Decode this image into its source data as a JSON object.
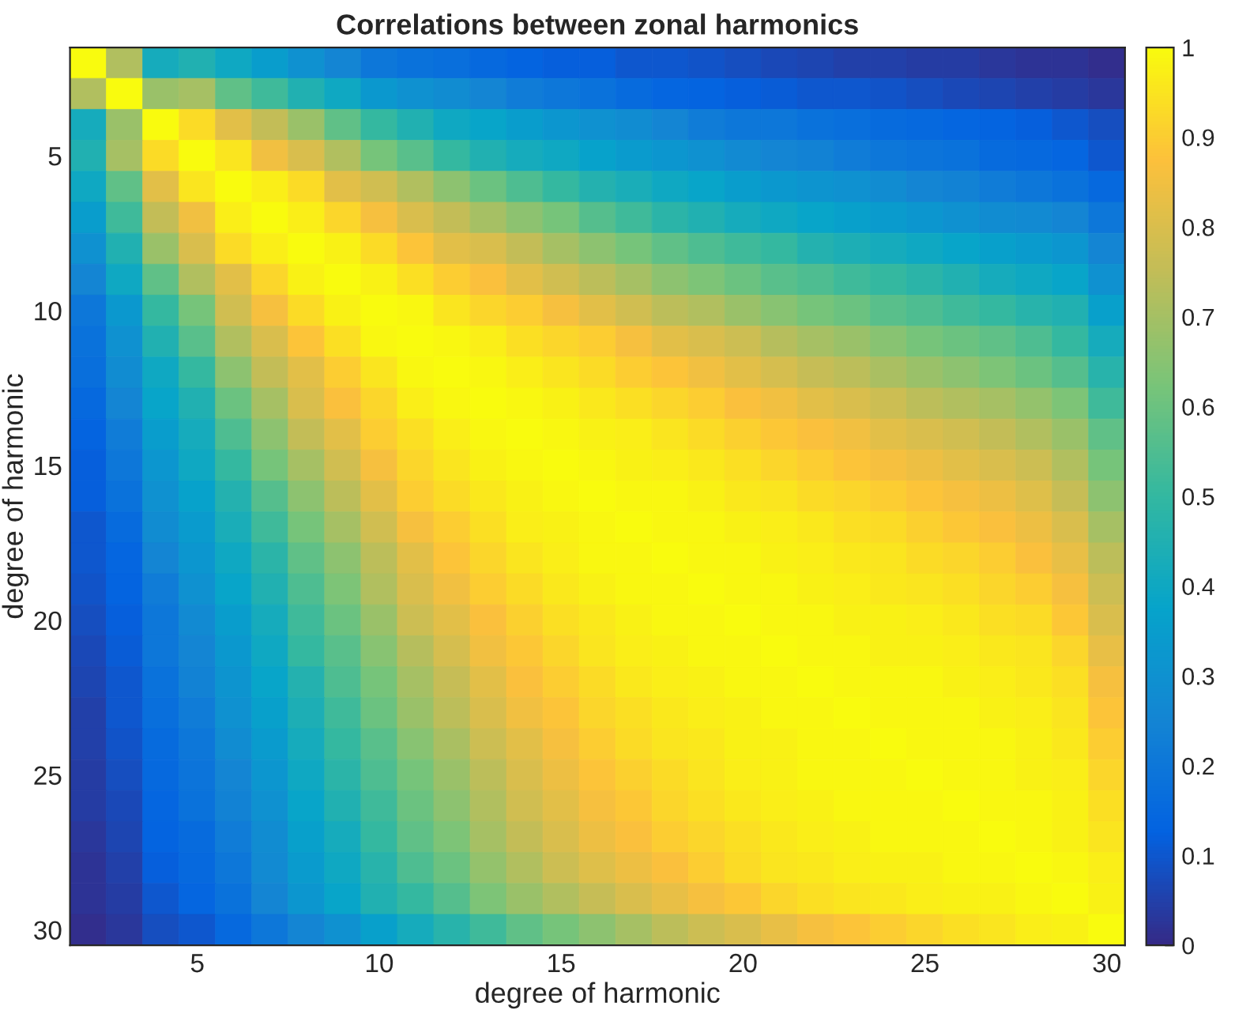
{
  "chart_data": {
    "type": "heatmap",
    "title": "Correlations between zonal harmonics",
    "xlabel": "degree of harmonic",
    "ylabel": "degree of harmonic",
    "categories": [
      null,
      null,
      null,
      "5",
      null,
      null,
      null,
      null,
      "10",
      null,
      null,
      null,
      null,
      "15",
      null,
      null,
      null,
      null,
      "20",
      null,
      null,
      null,
      null,
      "25",
      null,
      null,
      null,
      null,
      "30"
    ],
    "y_categories": [
      null,
      null,
      null,
      "5",
      null,
      null,
      null,
      null,
      "10",
      null,
      null,
      null,
      null,
      "15",
      null,
      null,
      null,
      null,
      "20",
      null,
      null,
      null,
      null,
      "25",
      null,
      null,
      null,
      null,
      "30"
    ],
    "clim": [
      0,
      1
    ],
    "cticks": [
      0,
      0.1,
      0.2,
      0.3,
      0.4,
      0.5,
      0.6,
      0.7,
      0.8,
      0.9,
      1
    ],
    "cells": [
      [
        1,
        0.72,
        0.42,
        0.45,
        0.4,
        0.35,
        0.3,
        0.25,
        0.2,
        0.18,
        0.17,
        0.15,
        0.13,
        0.12,
        0.12,
        0.1,
        0.1,
        0.09,
        0.08,
        0.07,
        0.06,
        0.05,
        0.05,
        0.04,
        0.04,
        0.03,
        0.02,
        0.02,
        0.01
      ],
      [
        0.72,
        1,
        0.68,
        0.7,
        0.58,
        0.52,
        0.45,
        0.4,
        0.33,
        0.3,
        0.28,
        0.25,
        0.22,
        0.2,
        0.18,
        0.16,
        0.14,
        0.13,
        0.12,
        0.11,
        0.1,
        0.1,
        0.09,
        0.08,
        0.07,
        0.06,
        0.05,
        0.04,
        0.03
      ],
      [
        0.42,
        0.68,
        1,
        0.93,
        0.82,
        0.75,
        0.68,
        0.58,
        0.5,
        0.45,
        0.4,
        0.38,
        0.35,
        0.32,
        0.3,
        0.28,
        0.25,
        0.22,
        0.2,
        0.2,
        0.18,
        0.17,
        0.16,
        0.15,
        0.14,
        0.13,
        0.12,
        0.1,
        0.08
      ],
      [
        0.45,
        0.7,
        0.93,
        1,
        0.95,
        0.85,
        0.8,
        0.72,
        0.62,
        0.57,
        0.5,
        0.45,
        0.42,
        0.4,
        0.37,
        0.34,
        0.32,
        0.3,
        0.27,
        0.25,
        0.24,
        0.22,
        0.2,
        0.19,
        0.18,
        0.16,
        0.15,
        0.14,
        0.1
      ],
      [
        0.4,
        0.58,
        0.82,
        0.95,
        1,
        0.97,
        0.93,
        0.82,
        0.78,
        0.72,
        0.66,
        0.6,
        0.55,
        0.5,
        0.46,
        0.43,
        0.4,
        0.38,
        0.35,
        0.33,
        0.31,
        0.3,
        0.28,
        0.25,
        0.24,
        0.22,
        0.2,
        0.18,
        0.15
      ],
      [
        0.35,
        0.52,
        0.75,
        0.85,
        0.97,
        1,
        0.97,
        0.92,
        0.86,
        0.8,
        0.75,
        0.7,
        0.66,
        0.62,
        0.56,
        0.52,
        0.48,
        0.45,
        0.42,
        0.4,
        0.38,
        0.36,
        0.34,
        0.32,
        0.3,
        0.28,
        0.27,
        0.25,
        0.2
      ],
      [
        0.3,
        0.45,
        0.68,
        0.8,
        0.93,
        0.97,
        1,
        0.98,
        0.93,
        0.88,
        0.82,
        0.8,
        0.75,
        0.7,
        0.66,
        0.62,
        0.58,
        0.55,
        0.52,
        0.5,
        0.46,
        0.44,
        0.42,
        0.4,
        0.38,
        0.36,
        0.34,
        0.32,
        0.25
      ],
      [
        0.25,
        0.4,
        0.58,
        0.72,
        0.82,
        0.92,
        0.98,
        1,
        0.98,
        0.94,
        0.9,
        0.87,
        0.82,
        0.78,
        0.74,
        0.7,
        0.66,
        0.63,
        0.6,
        0.57,
        0.55,
        0.52,
        0.5,
        0.48,
        0.45,
        0.42,
        0.4,
        0.38,
        0.3
      ],
      [
        0.2,
        0.33,
        0.5,
        0.62,
        0.78,
        0.86,
        0.93,
        0.98,
        1,
        0.99,
        0.95,
        0.92,
        0.9,
        0.86,
        0.82,
        0.78,
        0.74,
        0.72,
        0.68,
        0.65,
        0.62,
        0.6,
        0.57,
        0.55,
        0.52,
        0.5,
        0.47,
        0.45,
        0.36
      ],
      [
        0.18,
        0.3,
        0.45,
        0.57,
        0.72,
        0.8,
        0.88,
        0.94,
        0.99,
        1,
        0.99,
        0.97,
        0.94,
        0.92,
        0.9,
        0.86,
        0.82,
        0.8,
        0.77,
        0.73,
        0.7,
        0.68,
        0.65,
        0.62,
        0.6,
        0.58,
        0.55,
        0.5,
        0.42
      ],
      [
        0.17,
        0.28,
        0.4,
        0.5,
        0.66,
        0.75,
        0.82,
        0.9,
        0.95,
        0.99,
        1,
        0.99,
        0.97,
        0.95,
        0.93,
        0.9,
        0.88,
        0.85,
        0.82,
        0.79,
        0.76,
        0.74,
        0.71,
        0.68,
        0.66,
        0.63,
        0.6,
        0.56,
        0.47
      ],
      [
        0.15,
        0.25,
        0.38,
        0.45,
        0.6,
        0.7,
        0.8,
        0.87,
        0.92,
        0.97,
        0.99,
        1,
        0.99,
        0.98,
        0.96,
        0.94,
        0.92,
        0.9,
        0.87,
        0.85,
        0.82,
        0.8,
        0.77,
        0.74,
        0.72,
        0.7,
        0.67,
        0.63,
        0.52
      ],
      [
        0.13,
        0.22,
        0.35,
        0.42,
        0.55,
        0.66,
        0.75,
        0.82,
        0.9,
        0.94,
        0.97,
        0.99,
        1,
        0.99,
        0.98,
        0.97,
        0.95,
        0.93,
        0.91,
        0.89,
        0.87,
        0.85,
        0.82,
        0.8,
        0.78,
        0.75,
        0.72,
        0.68,
        0.58
      ],
      [
        0.12,
        0.2,
        0.32,
        0.4,
        0.5,
        0.62,
        0.7,
        0.78,
        0.86,
        0.92,
        0.95,
        0.98,
        0.99,
        1,
        0.99,
        0.98,
        0.97,
        0.96,
        0.94,
        0.92,
        0.9,
        0.88,
        0.86,
        0.84,
        0.82,
        0.8,
        0.77,
        0.72,
        0.62
      ],
      [
        0.12,
        0.18,
        0.3,
        0.37,
        0.46,
        0.56,
        0.66,
        0.74,
        0.82,
        0.9,
        0.93,
        0.96,
        0.98,
        0.99,
        1,
        0.99,
        0.99,
        0.98,
        0.96,
        0.95,
        0.93,
        0.92,
        0.9,
        0.88,
        0.86,
        0.84,
        0.81,
        0.76,
        0.66
      ],
      [
        0.1,
        0.16,
        0.28,
        0.34,
        0.43,
        0.52,
        0.62,
        0.7,
        0.78,
        0.86,
        0.9,
        0.94,
        0.97,
        0.98,
        0.99,
        1,
        0.99,
        0.99,
        0.98,
        0.97,
        0.96,
        0.94,
        0.93,
        0.91,
        0.89,
        0.87,
        0.84,
        0.8,
        0.7
      ],
      [
        0.1,
        0.14,
        0.25,
        0.32,
        0.4,
        0.48,
        0.58,
        0.66,
        0.74,
        0.82,
        0.88,
        0.92,
        0.95,
        0.97,
        0.99,
        0.99,
        1,
        0.99,
        0.99,
        0.98,
        0.97,
        0.96,
        0.95,
        0.93,
        0.92,
        0.9,
        0.87,
        0.83,
        0.74
      ],
      [
        0.09,
        0.13,
        0.22,
        0.3,
        0.38,
        0.45,
        0.55,
        0.63,
        0.72,
        0.8,
        0.85,
        0.9,
        0.93,
        0.96,
        0.98,
        0.99,
        0.99,
        1,
        0.99,
        0.99,
        0.98,
        0.97,
        0.96,
        0.95,
        0.94,
        0.92,
        0.9,
        0.86,
        0.77
      ],
      [
        0.08,
        0.12,
        0.2,
        0.27,
        0.35,
        0.42,
        0.52,
        0.6,
        0.68,
        0.77,
        0.82,
        0.87,
        0.91,
        0.94,
        0.96,
        0.98,
        0.99,
        0.99,
        1,
        0.99,
        0.99,
        0.98,
        0.98,
        0.97,
        0.96,
        0.94,
        0.93,
        0.89,
        0.8
      ],
      [
        0.07,
        0.11,
        0.2,
        0.25,
        0.33,
        0.4,
        0.5,
        0.57,
        0.65,
        0.73,
        0.79,
        0.85,
        0.89,
        0.92,
        0.95,
        0.97,
        0.98,
        0.99,
        0.99,
        1,
        0.99,
        0.99,
        0.98,
        0.98,
        0.97,
        0.96,
        0.95,
        0.92,
        0.83
      ],
      [
        0.06,
        0.1,
        0.18,
        0.24,
        0.31,
        0.38,
        0.46,
        0.55,
        0.62,
        0.7,
        0.76,
        0.82,
        0.87,
        0.9,
        0.93,
        0.96,
        0.97,
        0.98,
        0.99,
        0.99,
        1,
        0.99,
        0.99,
        0.99,
        0.98,
        0.97,
        0.96,
        0.94,
        0.86
      ],
      [
        0.05,
        0.1,
        0.17,
        0.22,
        0.3,
        0.36,
        0.44,
        0.52,
        0.6,
        0.68,
        0.74,
        0.8,
        0.85,
        0.88,
        0.92,
        0.94,
        0.96,
        0.97,
        0.98,
        0.99,
        0.99,
        1,
        0.99,
        0.99,
        0.99,
        0.98,
        0.97,
        0.95,
        0.88
      ],
      [
        0.05,
        0.09,
        0.16,
        0.2,
        0.28,
        0.34,
        0.42,
        0.5,
        0.57,
        0.65,
        0.71,
        0.77,
        0.82,
        0.86,
        0.9,
        0.93,
        0.95,
        0.96,
        0.98,
        0.98,
        0.99,
        0.99,
        1,
        0.99,
        0.99,
        0.99,
        0.98,
        0.96,
        0.9
      ],
      [
        0.04,
        0.08,
        0.15,
        0.19,
        0.25,
        0.32,
        0.4,
        0.48,
        0.55,
        0.62,
        0.68,
        0.74,
        0.8,
        0.84,
        0.88,
        0.91,
        0.93,
        0.95,
        0.97,
        0.98,
        0.99,
        0.99,
        0.99,
        1,
        0.99,
        0.99,
        0.98,
        0.97,
        0.92
      ],
      [
        0.04,
        0.07,
        0.14,
        0.18,
        0.24,
        0.3,
        0.38,
        0.45,
        0.52,
        0.6,
        0.66,
        0.72,
        0.78,
        0.82,
        0.86,
        0.89,
        0.92,
        0.94,
        0.96,
        0.97,
        0.98,
        0.99,
        0.99,
        0.99,
        1,
        0.99,
        0.99,
        0.98,
        0.94
      ],
      [
        0.03,
        0.06,
        0.13,
        0.16,
        0.22,
        0.28,
        0.36,
        0.42,
        0.5,
        0.58,
        0.63,
        0.7,
        0.75,
        0.8,
        0.84,
        0.87,
        0.9,
        0.92,
        0.94,
        0.96,
        0.97,
        0.98,
        0.99,
        0.99,
        0.99,
        1,
        0.99,
        0.98,
        0.95
      ],
      [
        0.02,
        0.05,
        0.12,
        0.15,
        0.2,
        0.27,
        0.34,
        0.4,
        0.47,
        0.55,
        0.6,
        0.67,
        0.72,
        0.77,
        0.81,
        0.84,
        0.87,
        0.9,
        0.93,
        0.95,
        0.96,
        0.97,
        0.98,
        0.98,
        0.99,
        0.99,
        1,
        0.99,
        0.97
      ],
      [
        0.02,
        0.04,
        0.1,
        0.14,
        0.18,
        0.25,
        0.32,
        0.38,
        0.45,
        0.5,
        0.56,
        0.63,
        0.68,
        0.72,
        0.76,
        0.8,
        0.83,
        0.86,
        0.89,
        0.92,
        0.94,
        0.95,
        0.96,
        0.97,
        0.98,
        0.98,
        0.99,
        1,
        0.98
      ],
      [
        0.01,
        0.03,
        0.08,
        0.1,
        0.15,
        0.2,
        0.25,
        0.3,
        0.36,
        0.42,
        0.47,
        0.52,
        0.58,
        0.62,
        0.66,
        0.7,
        0.74,
        0.77,
        0.8,
        0.83,
        0.86,
        0.88,
        0.9,
        0.92,
        0.94,
        0.95,
        0.97,
        0.98,
        1
      ]
    ]
  }
}
